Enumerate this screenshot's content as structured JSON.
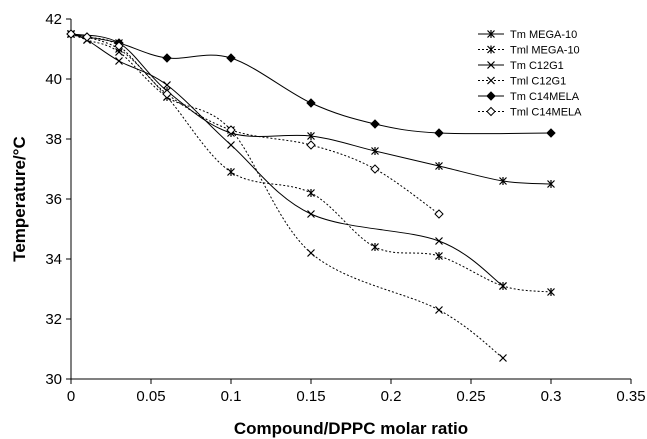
{
  "chart_data": {
    "type": "line",
    "title": "",
    "xlabel": "Compound/DPPC molar ratio",
    "ylabel": "Temperature/°C",
    "xlim": [
      0,
      0.35
    ],
    "ylim": [
      30,
      42
    ],
    "xticks": [
      "0",
      "0.05",
      "0.1",
      "0.15",
      "0.2",
      "0.25",
      "0.3",
      "0.35"
    ],
    "yticks": [
      "30",
      "32",
      "34",
      "36",
      "38",
      "40",
      "42"
    ],
    "grid": false,
    "legend_position": "top-right",
    "series": [
      {
        "name": "Tm  MEGA-10",
        "line": "solid",
        "marker": "star",
        "x": [
          0,
          0.03,
          0.06,
          0.1,
          0.15,
          0.19,
          0.23,
          0.27,
          0.3
        ],
        "y": [
          41.5,
          41.2,
          39.6,
          38.2,
          38.1,
          37.6,
          37.1,
          36.6,
          36.5
        ]
      },
      {
        "name": "Tml MEGA-10",
        "line": "dotted",
        "marker": "star",
        "x": [
          0,
          0.03,
          0.06,
          0.1,
          0.15,
          0.19,
          0.23,
          0.27,
          0.3
        ],
        "y": [
          41.5,
          41.0,
          39.4,
          36.9,
          36.2,
          34.4,
          34.1,
          33.1,
          32.9
        ]
      },
      {
        "name": "Tm  C12G1",
        "line": "solid",
        "marker": "x",
        "x": [
          0,
          0.01,
          0.03,
          0.06,
          0.1,
          0.15,
          0.23,
          0.27
        ],
        "y": [
          41.5,
          41.3,
          40.6,
          39.8,
          37.8,
          35.5,
          34.6,
          33.1
        ]
      },
      {
        "name": "Tml C12G1",
        "line": "dotted",
        "marker": "x",
        "x": [
          0,
          0.01,
          0.03,
          0.06,
          0.1,
          0.15,
          0.23,
          0.27
        ],
        "y": [
          41.5,
          41.3,
          40.9,
          39.4,
          38.3,
          34.2,
          32.3,
          30.7
        ]
      },
      {
        "name": "Tm  C14MELA",
        "line": "solid",
        "marker": "diamond-filled",
        "x": [
          0,
          0.01,
          0.03,
          0.06,
          0.1,
          0.15,
          0.19,
          0.23,
          0.3
        ],
        "y": [
          41.5,
          41.4,
          41.2,
          40.7,
          40.7,
          39.2,
          38.5,
          38.2,
          38.2
        ]
      },
      {
        "name": "Tml C14MELA",
        "line": "dotted",
        "marker": "diamond-open",
        "x": [
          0,
          0.01,
          0.03,
          0.06,
          0.1,
          0.15,
          0.19,
          0.23
        ],
        "y": [
          41.5,
          41.4,
          41.1,
          39.5,
          38.3,
          37.8,
          37.0,
          35.5
        ]
      }
    ]
  }
}
